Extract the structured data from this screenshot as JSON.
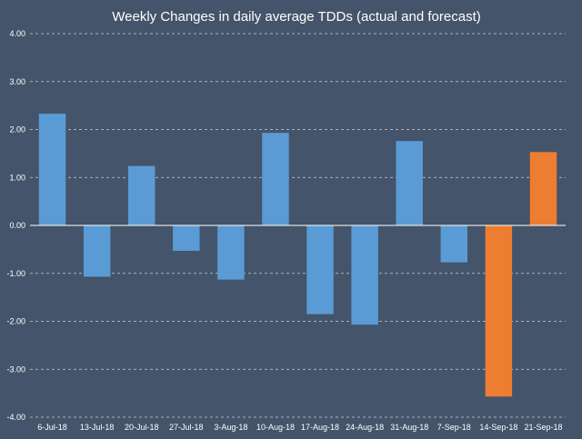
{
  "chart_data": {
    "type": "bar",
    "title": "Weekly Changes in daily average TDDs (actual and forecast)",
    "xlabel": "",
    "ylabel": "",
    "ylim": [
      -4,
      4
    ],
    "yticks": [
      "4.00",
      "3.00",
      "2.00",
      "1.00",
      "0.00",
      "-1.00",
      "-2.00",
      "-3.00",
      "-4.00"
    ],
    "ytick_values": [
      4,
      3,
      2,
      1,
      0,
      -1,
      -2,
      -3,
      -4
    ],
    "categories": [
      "6-Jul-18",
      "13-Jul-18",
      "20-Jul-18",
      "27-Jul-18",
      "3-Aug-18",
      "10-Aug-18",
      "17-Aug-18",
      "24-Aug-18",
      "31-Aug-18",
      "7-Sep-18",
      "14-Sep-18",
      "21-Sep-18"
    ],
    "values": [
      2.33,
      -1.07,
      1.24,
      -0.53,
      -1.13,
      1.93,
      -1.85,
      -2.07,
      1.76,
      -0.77,
      -3.57,
      1.53
    ],
    "bar_colors": [
      "#5b9bd5",
      "#5b9bd5",
      "#5b9bd5",
      "#5b9bd5",
      "#5b9bd5",
      "#5b9bd5",
      "#5b9bd5",
      "#5b9bd5",
      "#5b9bd5",
      "#5b9bd5",
      "#ed7d31",
      "#ed7d31"
    ],
    "grid": true,
    "legend": "none"
  },
  "colors": {
    "background": "#44546a",
    "actual": "#5b9bd5",
    "forecast": "#ed7d31"
  }
}
